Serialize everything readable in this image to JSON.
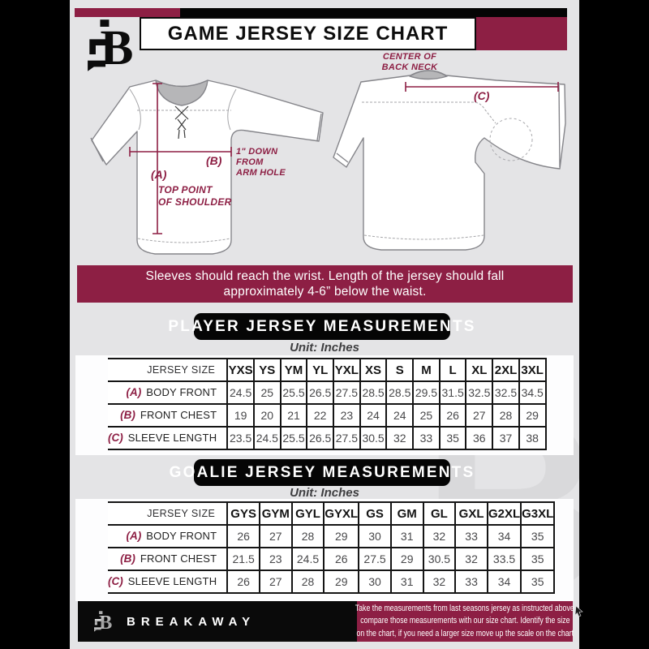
{
  "colors": {
    "maroon": "#8d1f44",
    "black": "#000000",
    "background": "#e4e4e6"
  },
  "header": {
    "title": "GAME JERSEY SIZE CHART"
  },
  "diagram": {
    "front": {
      "marker_a": "(A)",
      "a_desc_lines": [
        "TOP POINT",
        "OF SHOULDER"
      ],
      "marker_b": "(B)",
      "b_desc_lines": [
        "1\" DOWN",
        "FROM",
        "ARM HOLE"
      ]
    },
    "back": {
      "marker_c": "(C)",
      "neck_label_lines": [
        "CENTER OF",
        "BACK NECK"
      ]
    }
  },
  "note_banner": {
    "lines": [
      "Sleeves should reach the wrist. Length of the jersey should fall",
      "approximately 4-6” below the waist."
    ]
  },
  "player_section": {
    "title": "PLAYER JERSEY MEASUREMENTS",
    "unit": "Unit: Inches",
    "table": {
      "corner_label": "JERSEY SIZE",
      "sizes": [
        "YXS",
        "YS",
        "YM",
        "YL",
        "YXL",
        "XS",
        "S",
        "M",
        "L",
        "XL",
        "2XL",
        "3XL"
      ],
      "rows": [
        {
          "marker": "(A)",
          "label": "BODY FRONT",
          "values": [
            "24.5",
            "25",
            "25.5",
            "26.5",
            "27.5",
            "28.5",
            "28.5",
            "29.5",
            "31.5",
            "32.5",
            "32.5",
            "34.5"
          ]
        },
        {
          "marker": "(B)",
          "label": "FRONT CHEST",
          "values": [
            "19",
            "20",
            "21",
            "22",
            "23",
            "24",
            "24",
            "25",
            "26",
            "27",
            "28",
            "29"
          ]
        },
        {
          "marker": "(C)",
          "label": "SLEEVE LENGTH",
          "values": [
            "23.5",
            "24.5",
            "25.5",
            "26.5",
            "27.5",
            "30.5",
            "32",
            "33",
            "35",
            "36",
            "37",
            "38"
          ]
        }
      ]
    }
  },
  "goalie_section": {
    "title": "GOALIE JERSEY MEASUREMENTS",
    "unit": "Unit: Inches",
    "table": {
      "corner_label": "JERSEY SIZE",
      "sizes": [
        "GYS",
        "GYM",
        "GYL",
        "GYXL",
        "GS",
        "GM",
        "GL",
        "GXL",
        "G2XL",
        "G3XL"
      ],
      "rows": [
        {
          "marker": "(A)",
          "label": "BODY FRONT",
          "values": [
            "26",
            "27",
            "28",
            "29",
            "30",
            "31",
            "32",
            "33",
            "34",
            "35"
          ]
        },
        {
          "marker": "(B)",
          "label": "FRONT CHEST",
          "values": [
            "21.5",
            "23",
            "24.5",
            "26",
            "27.5",
            "29",
            "30.5",
            "32",
            "33.5",
            "35"
          ]
        },
        {
          "marker": "(C)",
          "label": "SLEEVE LENGTH",
          "values": [
            "26",
            "27",
            "28",
            "29",
            "30",
            "31",
            "32",
            "33",
            "34",
            "35"
          ]
        }
      ]
    }
  },
  "footer": {
    "brand": "BREAKAWAY",
    "lines": [
      "Take the measurements from last seasons jersey as instructed above",
      "compare those measurements  with our size chart. Identify the size",
      "on the chart, if you need a larger size move up the scale on the chart"
    ]
  },
  "watermark": {
    "letter": "B"
  }
}
